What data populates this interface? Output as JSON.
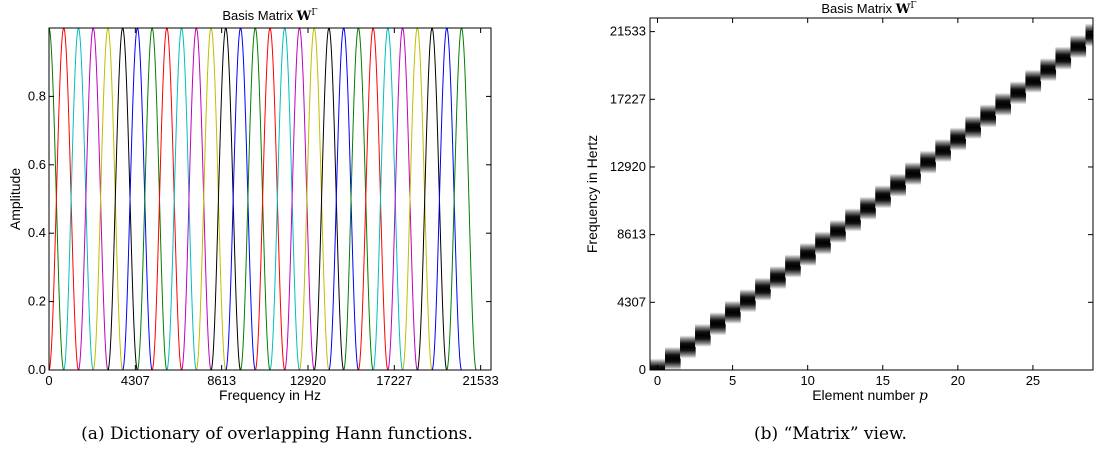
{
  "chart_data": [
    {
      "type": "line",
      "title_prefix": "Basis Matrix ",
      "title_math": "W",
      "title_sup": "Γ",
      "xlabel": "Frequency in Hz",
      "ylabel": "Amplitude",
      "xlim": [
        0,
        22050
      ],
      "ylim": [
        0,
        1
      ],
      "xticks": [
        0,
        4307,
        8613,
        12920,
        17227,
        21533
      ],
      "xtick_labels": [
        "0",
        "4307",
        "8613",
        "12920",
        "17227",
        "21533"
      ],
      "yticks": [
        0,
        0.2,
        0.4,
        0.6,
        0.8
      ],
      "ytick_labels": [
        "0.0",
        "0.2",
        "0.4",
        "0.6",
        "0.8"
      ],
      "n_basis_functions": 30,
      "basis_spacing_hz": 735,
      "basis_width_hz": 1470,
      "function": "hann",
      "colors": [
        "#0000ff",
        "#008000",
        "#ff0000",
        "#00bfbf",
        "#bf00bf",
        "#bfbf00",
        "#000000"
      ]
    },
    {
      "type": "heatmap",
      "title_prefix": "Basis Matrix ",
      "title_math": "W",
      "title_sup": "Γ",
      "xlabel_prefix": "Element number ",
      "xlabel_math": "p",
      "ylabel": "Frequency in Hertz",
      "xlim": [
        -0.5,
        29
      ],
      "ylim": [
        0,
        22400
      ],
      "xticks": [
        0,
        5,
        10,
        15,
        20,
        25
      ],
      "xtick_labels": [
        "0",
        "5",
        "10",
        "15",
        "20",
        "25"
      ],
      "yticks": [
        0,
        4307,
        8613,
        12920,
        17227,
        21533
      ],
      "ytick_labels": [
        "0",
        "4307",
        "8613",
        "12920",
        "17227",
        "21533"
      ],
      "n_elements": 30,
      "band_spacing_hz": 735,
      "band_width_hz": 1470,
      "colormap": "gray_reversed"
    }
  ],
  "captions": {
    "a": "(a) Dictionary of overlapping Hann functions.",
    "b": "(b) “Matrix” view."
  }
}
